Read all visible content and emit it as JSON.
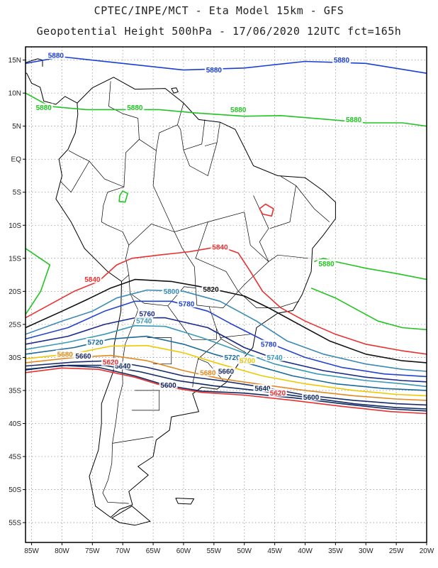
{
  "title_line1": "CPTEC/INPE/MCT -  Eta Model 15km - GFS",
  "title_line2": "Geopotential Height 500hPa - 17/06/2020 12UTC fct=165h",
  "chart_data": {
    "type": "contour-map",
    "variable": "Geopotential Height 500hPa",
    "lon_range": [
      -86,
      -20
    ],
    "lat_range": [
      -58,
      17
    ],
    "lon_ticks": [
      "85W",
      "80W",
      "75W",
      "70W",
      "65W",
      "60W",
      "55W",
      "50W",
      "45W",
      "40W",
      "35W",
      "30W",
      "25W",
      "20W"
    ],
    "lat_ticks": [
      "15N",
      "10N",
      "5N",
      "EQ",
      "5S",
      "10S",
      "15S",
      "20S",
      "25S",
      "30S",
      "35S",
      "40S",
      "45S",
      "50S",
      "55S"
    ],
    "grid": true,
    "contours": [
      {
        "value": "5880",
        "color": "#1a3fd4",
        "line": [
          [
            -86,
            14.5
          ],
          [
            -80,
            15.5
          ],
          [
            -70,
            14.5
          ],
          [
            -60,
            13.5
          ],
          [
            -50,
            13.8
          ],
          [
            -40,
            14.8
          ],
          [
            -30,
            14.5
          ],
          [
            -20,
            13
          ]
        ],
        "labels": [
          [
            -81,
            15.7
          ],
          [
            -55,
            13.5
          ],
          [
            -34,
            15
          ]
        ]
      },
      {
        "value": "5880",
        "color": "#22c422",
        "line": [
          [
            -86,
            10
          ],
          [
            -82,
            8
          ],
          [
            -76,
            7.5
          ],
          [
            -70,
            7.5
          ],
          [
            -64,
            7.5
          ],
          [
            -58,
            7
          ],
          [
            -50,
            6.5
          ],
          [
            -44,
            6.6
          ],
          [
            -36,
            6
          ],
          [
            -30,
            5.5
          ],
          [
            -24,
            5.5
          ],
          [
            -20,
            5
          ]
        ],
        "labels": [
          [
            -83,
            7.8
          ],
          [
            -68,
            7.8
          ],
          [
            -51,
            7.5
          ],
          [
            -32,
            6
          ]
        ]
      },
      {
        "value": "5880",
        "color": "#22c422",
        "line": [
          [
            -86,
            -13.5
          ],
          [
            -82,
            -16
          ],
          [
            -83.5,
            -20
          ],
          [
            -86,
            -23.5
          ]
        ],
        "labels": []
      },
      {
        "value": "5880",
        "color": "#22c422",
        "line": [
          [
            -70.5,
            -5.5
          ],
          [
            -70,
            -4.8
          ],
          [
            -69.2,
            -5.2
          ],
          [
            -69.6,
            -6.5
          ],
          [
            -70.6,
            -6.4
          ],
          [
            -70.5,
            -5.5
          ]
        ],
        "labels": []
      },
      {
        "value": "5880",
        "color": "#22c422",
        "line": [
          [
            -38.5,
            -15.5
          ],
          [
            -37,
            -15
          ],
          [
            -35,
            -15.5
          ],
          [
            -30,
            -16.5
          ],
          [
            -25,
            -17.3
          ],
          [
            -20,
            -18.2
          ]
        ],
        "labels": [
          [
            -36.5,
            -15.8
          ]
        ]
      },
      {
        "value": "5880",
        "color": "#22c422",
        "line": [
          [
            -39,
            -19.5
          ],
          [
            -35,
            -21
          ],
          [
            -31,
            -23
          ],
          [
            -28,
            -24.5
          ],
          [
            -24,
            -25.5
          ],
          [
            -20,
            -25.8
          ]
        ],
        "labels": []
      },
      {
        "value": "5840",
        "color": "#e83030",
        "line": [
          [
            -47.5,
            -7.5
          ],
          [
            -46.5,
            -6.8
          ],
          [
            -45.2,
            -7.5
          ],
          [
            -45.5,
            -8.6
          ],
          [
            -47,
            -8.3
          ],
          [
            -47.5,
            -7.5
          ]
        ],
        "labels": []
      },
      {
        "value": "5840",
        "color": "#e83030",
        "line": [
          [
            -86,
            -24
          ],
          [
            -78,
            -20
          ],
          [
            -74,
            -18.5
          ],
          [
            -71,
            -16
          ],
          [
            -68.5,
            -15
          ],
          [
            -64,
            -14.5
          ],
          [
            -59,
            -14
          ],
          [
            -54,
            -13.2
          ],
          [
            -51,
            -14.2
          ],
          [
            -49,
            -17
          ],
          [
            -47,
            -20
          ],
          [
            -44,
            -22.5
          ],
          [
            -40,
            -24.5
          ],
          [
            -35,
            -26.5
          ],
          [
            -30,
            -28
          ],
          [
            -24,
            -29
          ],
          [
            -20,
            -29.5
          ]
        ],
        "labels": [
          [
            -54,
            -13.3
          ],
          [
            -75,
            -18.2
          ]
        ]
      },
      {
        "value": "5820",
        "color": "#111111",
        "line": [
          [
            -86,
            -25.5
          ],
          [
            -80,
            -23
          ],
          [
            -76,
            -21.3
          ],
          [
            -72,
            -19.5
          ],
          [
            -68,
            -18.2
          ],
          [
            -62,
            -18.5
          ],
          [
            -56,
            -19.5
          ],
          [
            -50,
            -20.7
          ],
          [
            -46,
            -22.5
          ],
          [
            -41,
            -25
          ],
          [
            -36,
            -27.5
          ],
          [
            -30,
            -29.5
          ],
          [
            -24,
            -30.5
          ],
          [
            -20,
            -30.8
          ]
        ],
        "labels": [
          [
            -55.5,
            -19.7
          ]
        ]
      },
      {
        "value": "5800",
        "color": "#3a8ab5",
        "line": [
          [
            -86,
            -26.5
          ],
          [
            -80,
            -24.5
          ],
          [
            -75,
            -23
          ],
          [
            -71,
            -21
          ],
          [
            -66,
            -19.8
          ],
          [
            -60,
            -20
          ],
          [
            -54,
            -21.5
          ],
          [
            -48,
            -24.5
          ],
          [
            -43,
            -27.5
          ],
          [
            -37,
            -29.5
          ],
          [
            -30,
            -31
          ],
          [
            -24,
            -31.8
          ],
          [
            -20,
            -32.1
          ]
        ],
        "labels": [
          [
            -62,
            -20
          ]
        ]
      },
      {
        "value": "5780",
        "color": "#2244cc",
        "line": [
          [
            -86,
            -27.2
          ],
          [
            -79,
            -25.5
          ],
          [
            -73,
            -23
          ],
          [
            -68,
            -21.5
          ],
          [
            -62,
            -21.5
          ],
          [
            -56,
            -23
          ],
          [
            -52,
            -25
          ],
          [
            -46,
            -27.8
          ],
          [
            -40,
            -30
          ],
          [
            -34,
            -31.5
          ],
          [
            -27,
            -32.5
          ],
          [
            -20,
            -32.9
          ]
        ],
        "labels": [
          [
            -59.5,
            -21.9
          ],
          [
            -46,
            -28
          ]
        ]
      },
      {
        "value": "5760",
        "color": "#1a2a8a",
        "line": [
          [
            -86,
            -28
          ],
          [
            -79,
            -26.8
          ],
          [
            -73,
            -25
          ],
          [
            -68,
            -24
          ],
          [
            -63,
            -24
          ],
          [
            -56,
            -25.5
          ],
          [
            -50,
            -28.5
          ],
          [
            -44,
            -30.5
          ],
          [
            -37,
            -32
          ],
          [
            -30,
            -33
          ],
          [
            -24,
            -33.5
          ],
          [
            -20,
            -33.7
          ]
        ],
        "labels": [
          [
            -66,
            -23.4
          ]
        ]
      },
      {
        "value": "5740",
        "color": "#3a9ab5",
        "line": [
          [
            -86,
            -28.8
          ],
          [
            -79,
            -27.7
          ],
          [
            -73,
            -26.5
          ],
          [
            -68,
            -25.2
          ],
          [
            -63,
            -25.3
          ],
          [
            -57,
            -27
          ],
          [
            -51,
            -29
          ],
          [
            -45,
            -31
          ],
          [
            -38,
            -32.5
          ],
          [
            -30,
            -33.5
          ],
          [
            -24,
            -34
          ],
          [
            -20,
            -34.4
          ]
        ],
        "labels": [
          [
            -66.5,
            -24.5
          ],
          [
            -45,
            -30
          ]
        ]
      },
      {
        "value": "5720",
        "color": "#1a6a9a",
        "line": [
          [
            -86,
            -29.5
          ],
          [
            -78,
            -28.5
          ],
          [
            -72,
            -27.2
          ],
          [
            -66,
            -26.8
          ],
          [
            -60,
            -28
          ],
          [
            -55,
            -29.5
          ],
          [
            -49,
            -31
          ],
          [
            -42,
            -32.8
          ],
          [
            -35,
            -34
          ],
          [
            -27,
            -34.7
          ],
          [
            -20,
            -35
          ]
        ],
        "labels": [
          [
            -74.5,
            -27.7
          ],
          [
            -52,
            -30
          ]
        ]
      },
      {
        "value": "5700",
        "color": "#f0c800",
        "line": [
          [
            -86,
            -30.2
          ],
          [
            -78,
            -29.4
          ],
          [
            -72,
            -28.3
          ],
          [
            -66,
            -28.2
          ],
          [
            -60,
            -29.3
          ],
          [
            -54,
            -31
          ],
          [
            -47,
            -32.8
          ],
          [
            -40,
            -34
          ],
          [
            -32,
            -35
          ],
          [
            -25,
            -35.6
          ],
          [
            -20,
            -35.8
          ]
        ],
        "labels": [
          [
            -49.5,
            -30.5
          ]
        ]
      },
      {
        "value": "5680",
        "color": "#e08a20",
        "line": [
          [
            -86,
            -30.8
          ],
          [
            -78,
            -30
          ],
          [
            -72,
            -29.7
          ],
          [
            -66,
            -30.5
          ],
          [
            -60,
            -32
          ],
          [
            -54,
            -33.2
          ],
          [
            -48,
            -34
          ],
          [
            -40,
            -35
          ],
          [
            -32,
            -35.8
          ],
          [
            -25,
            -36.3
          ],
          [
            -20,
            -36.5
          ]
        ],
        "labels": [
          [
            -79.5,
            -29.5
          ],
          [
            -56,
            -32.3
          ]
        ]
      },
      {
        "value": "5660",
        "color": "#1a2a6a",
        "line": [
          [
            -86,
            -31.3
          ],
          [
            -78,
            -30.7
          ],
          [
            -72,
            -30.5
          ],
          [
            -66,
            -31.5
          ],
          [
            -60,
            -32.8
          ],
          [
            -54,
            -33.5
          ],
          [
            -47,
            -34.5
          ],
          [
            -40,
            -35.7
          ],
          [
            -32,
            -36.5
          ],
          [
            -25,
            -37
          ],
          [
            -20,
            -37.2
          ]
        ],
        "labels": [
          [
            -76.5,
            -29.8
          ],
          [
            -53,
            -32.1
          ]
        ]
      },
      {
        "value": "5640",
        "color": "#102a60",
        "line": [
          [
            -86,
            -31.8
          ],
          [
            -79,
            -31.2
          ],
          [
            -73,
            -31.2
          ],
          [
            -67,
            -32.2
          ],
          [
            -61,
            -33.5
          ],
          [
            -55,
            -34.3
          ],
          [
            -48,
            -35
          ],
          [
            -40,
            -36
          ],
          [
            -32,
            -37
          ],
          [
            -25,
            -37.6
          ],
          [
            -20,
            -37.8
          ]
        ],
        "labels": [
          [
            -70,
            -31.3
          ],
          [
            -47,
            -34.7
          ]
        ]
      },
      {
        "value": "5620",
        "color": "#e83030",
        "line": [
          [
            -86,
            -32.3
          ],
          [
            -80,
            -31.6
          ],
          [
            -74,
            -31.8
          ],
          [
            -68,
            -33
          ],
          [
            -63,
            -34.4
          ],
          [
            -57,
            -35.3
          ],
          [
            -50,
            -35.7
          ],
          [
            -42,
            -36.5
          ],
          [
            -34,
            -37.4
          ],
          [
            -26,
            -38.2
          ],
          [
            -20,
            -38.5
          ]
        ],
        "labels": [
          [
            -72,
            -30.7
          ],
          [
            -44.5,
            -35.4
          ]
        ]
      },
      {
        "value": "5600",
        "color": "#102a60",
        "line": [
          [
            -86,
            -31.9
          ],
          [
            -80,
            -31.2
          ],
          [
            -74,
            -31.5
          ],
          [
            -68,
            -32.8
          ],
          [
            -63,
            -34.2
          ],
          [
            -57,
            -35.1
          ],
          [
            -50,
            -35.4
          ],
          [
            -42,
            -36.1
          ],
          [
            -34,
            -37
          ],
          [
            -26,
            -37.8
          ],
          [
            -20,
            -38.1
          ]
        ],
        "labels": [
          [
            -62.5,
            -34.2
          ],
          [
            -39,
            -36
          ]
        ]
      }
    ]
  }
}
